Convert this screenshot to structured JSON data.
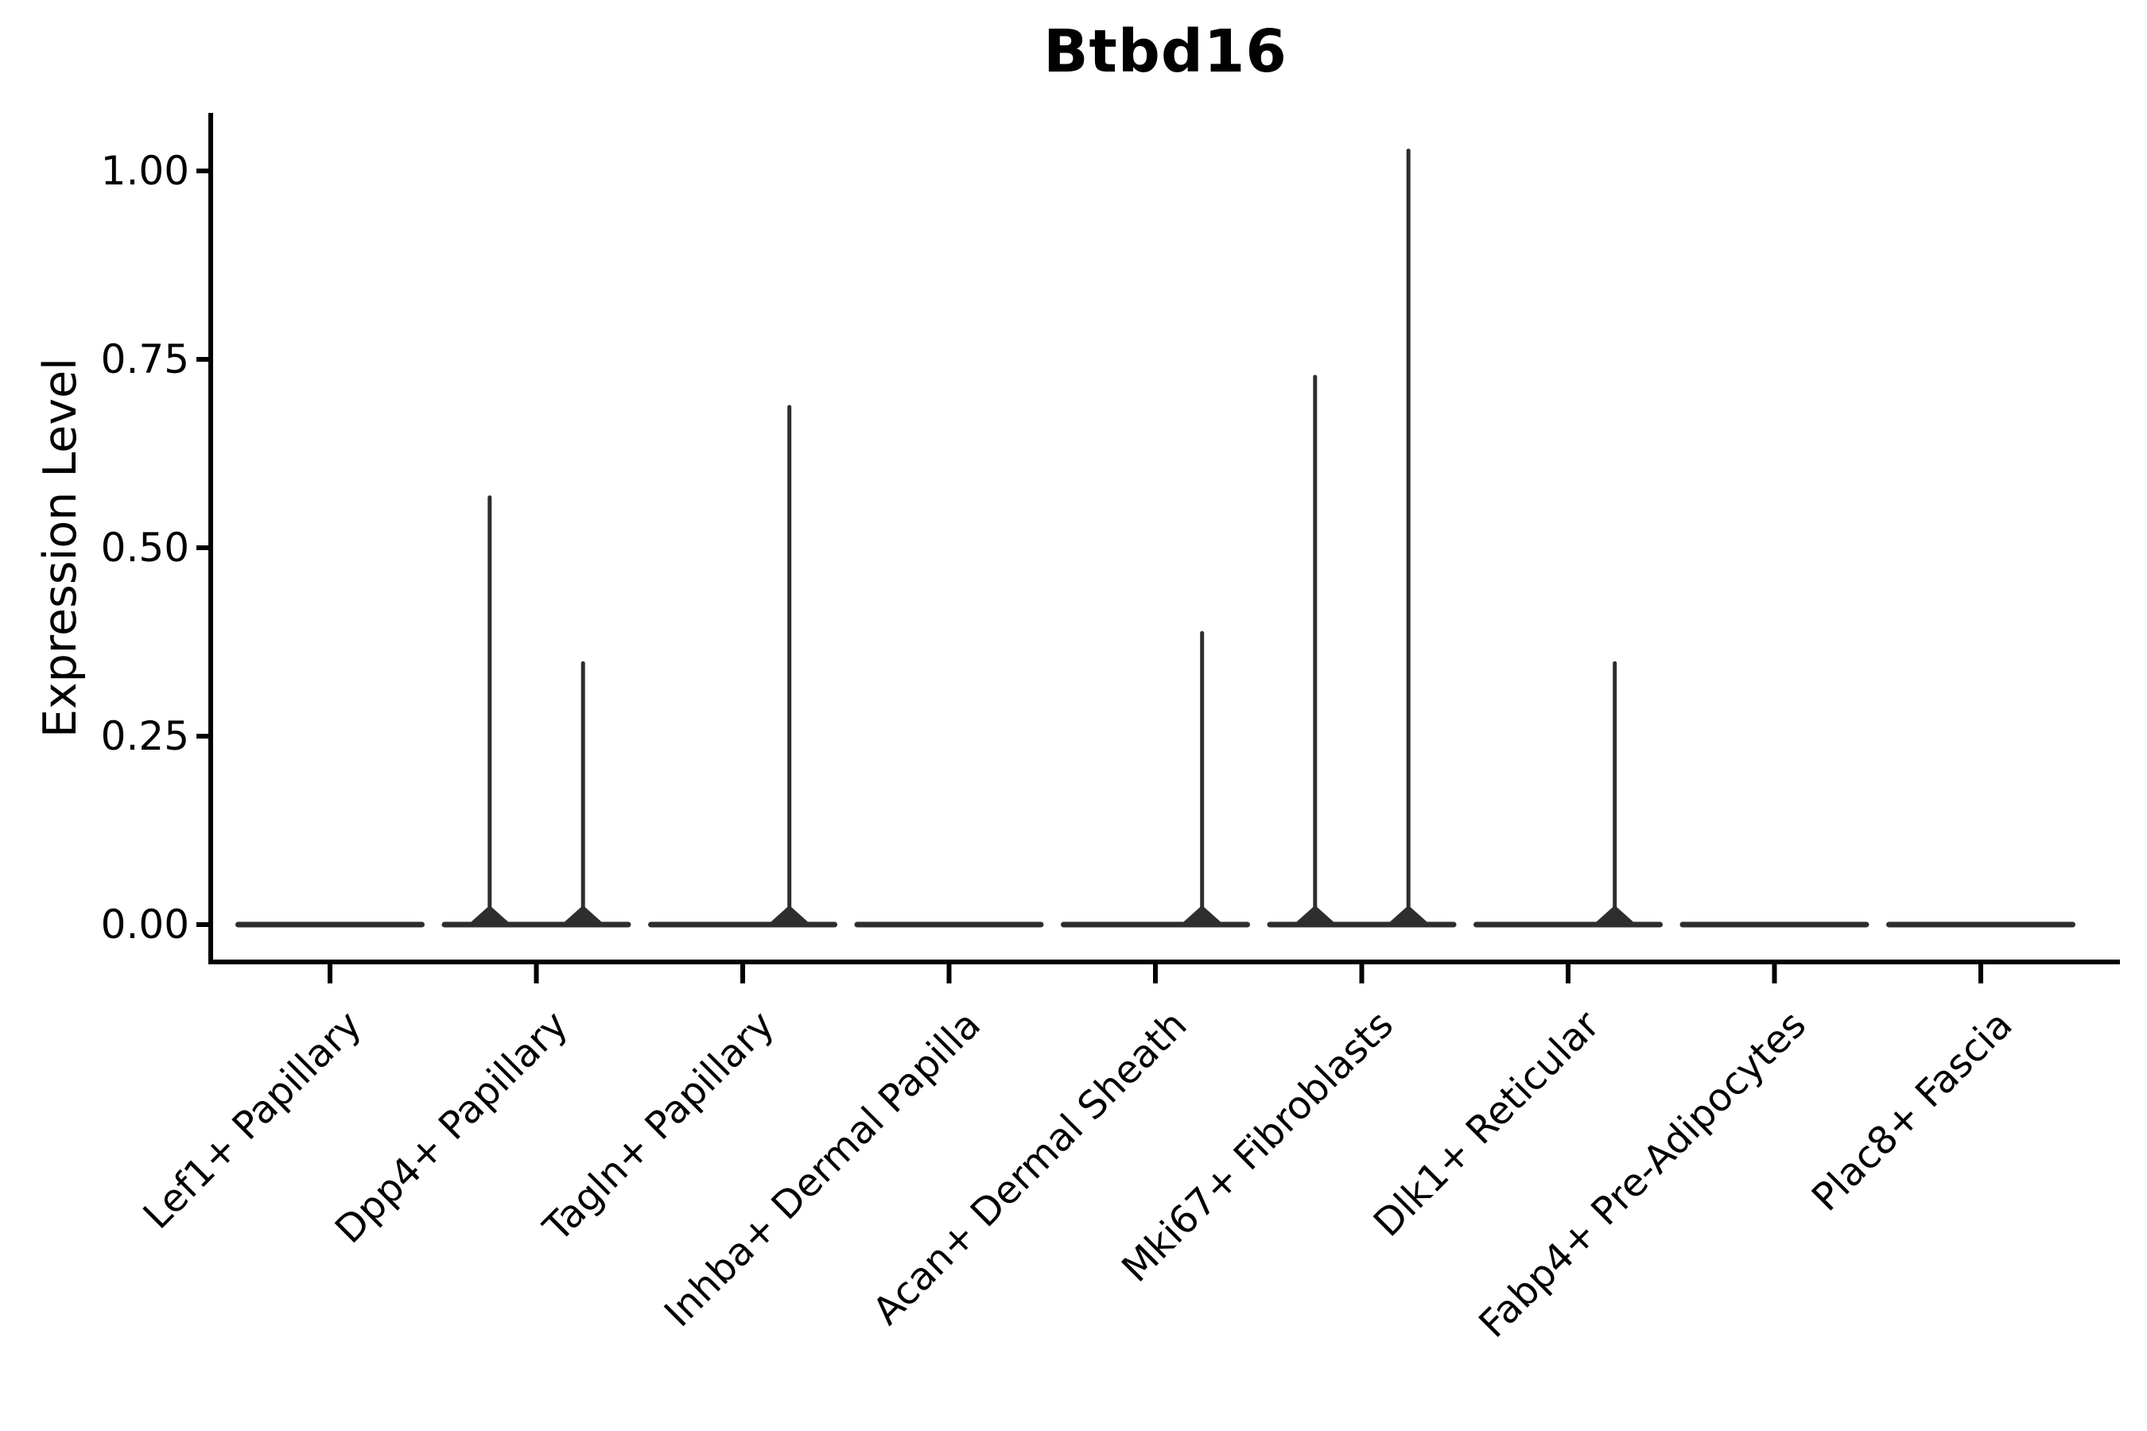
{
  "chart_data": {
    "type": "violin",
    "title": "Btbd16",
    "xlabel": "",
    "ylabel": "Expression Level",
    "ylim": [
      0,
      1.08
    ],
    "grid": false,
    "legend": "none",
    "violin_style": "collapsed-at-zero violins (flat baseline bars) with thin vertical density spikes; two sub-violins per category",
    "yticks": [
      {
        "value": 1.0,
        "label": "1.00"
      },
      {
        "value": 0.75,
        "label": "0.75"
      },
      {
        "value": 0.5,
        "label": "0.50"
      },
      {
        "value": 0.25,
        "label": "0.25"
      },
      {
        "value": 0.0,
        "label": "0.00"
      }
    ],
    "categories": [
      {
        "label": "Lef1+ Papillary",
        "spikes": []
      },
      {
        "label": "Dpp4+ Papillary",
        "spikes": [
          {
            "offset": "left",
            "max_expression": 0.57
          },
          {
            "offset": "right",
            "max_expression": 0.35
          }
        ]
      },
      {
        "label": "Tagln+ Papillary",
        "spikes": [
          {
            "offset": "right",
            "max_expression": 0.69
          }
        ]
      },
      {
        "label": "Inhba+ Dermal Papilla",
        "spikes": []
      },
      {
        "label": "Acan+ Dermal Sheath",
        "spikes": [
          {
            "offset": "right",
            "max_expression": 0.39
          }
        ]
      },
      {
        "label": "Mki67+ Fibroblasts",
        "spikes": [
          {
            "offset": "left",
            "max_expression": 0.73
          },
          {
            "offset": "right",
            "max_expression": 1.03
          }
        ]
      },
      {
        "label": "Dlk1+ Reticular",
        "spikes": [
          {
            "offset": "right",
            "max_expression": 0.35
          }
        ]
      },
      {
        "label": "Fabp4+ Pre-Adipocytes",
        "spikes": []
      },
      {
        "label": "Plac8+ Fascia",
        "spikes": []
      }
    ],
    "colors": {
      "violin": "#2e2e2e",
      "axis": "#000000",
      "text": "#000000",
      "background": "#ffffff"
    }
  }
}
